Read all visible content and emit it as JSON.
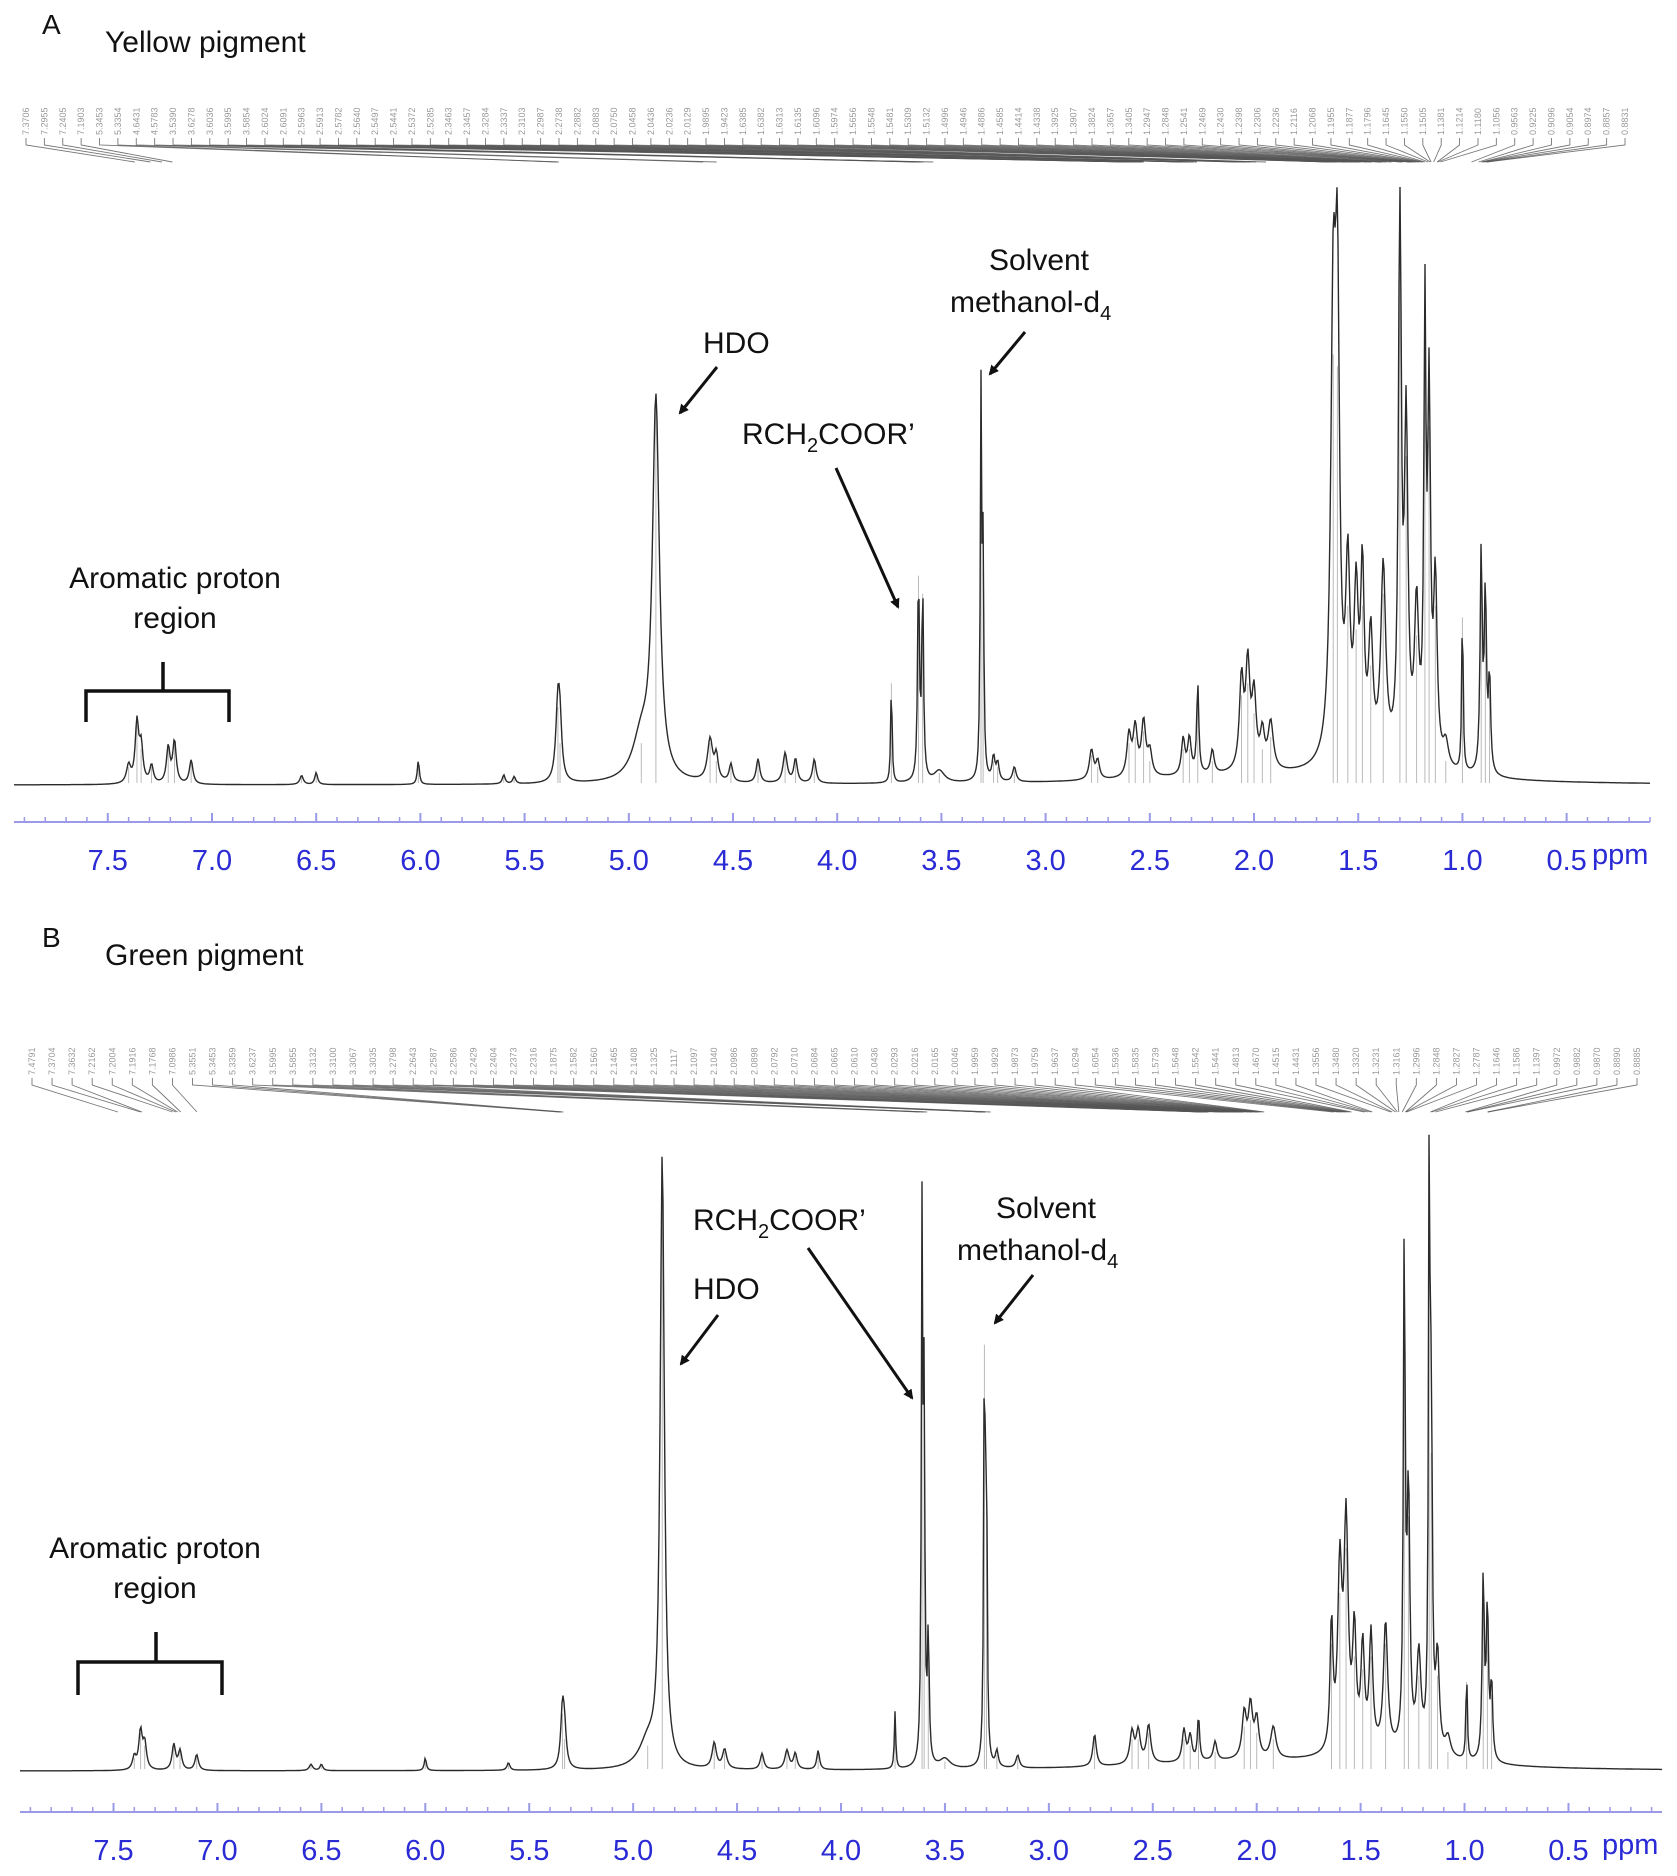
{
  "panels": [
    {
      "letter": "A",
      "title": "Yellow pigment",
      "xlabel": "ppm",
      "annotations": {
        "aromatic": [
          "Aromatic proton",
          "region"
        ],
        "hdo": "HDO",
        "ester": {
          "main": "RCH",
          "sub": "2",
          "rest": "COOR’"
        },
        "solvent": {
          "line1": "Solvent",
          "main": "methanol-d",
          "sub": "4"
        }
      },
      "peak_list": [
        "7.3706",
        "7.2955",
        "7.2405",
        "7.1903",
        "5.3453",
        "5.3354",
        "4.6431",
        "4.5783",
        "3.5390",
        "3.6278",
        "3.6036",
        "3.5995",
        "3.5854",
        "2.6024",
        "2.6091",
        "2.5963",
        "2.5913",
        "2.5782",
        "2.5640",
        "2.5497",
        "2.5441",
        "2.5372",
        "2.5285",
        "2.3463",
        "2.3457",
        "2.3284",
        "2.3337",
        "2.3103",
        "2.2987",
        "2.2738",
        "2.2882",
        "2.0883",
        "2.0750",
        "2.0458",
        "2.0436",
        "2.0236",
        "2.0129",
        "1.9895",
        "1.9423",
        "1.6385",
        "1.6382",
        "1.6313",
        "1.6135",
        "1.6096",
        "1.5974",
        "1.5656",
        "1.5548",
        "1.5481",
        "1.5309",
        "1.5132",
        "1.4996",
        "1.4946",
        "1.4886",
        "1.4585",
        "1.4414",
        "1.4338",
        "1.3925",
        "1.3907",
        "1.3824",
        "1.3657",
        "1.3405",
        "1.2947",
        "1.2848",
        "1.2541",
        "1.2469",
        "1.2430",
        "1.2398",
        "1.2306",
        "1.2236",
        "1.2116",
        "1.2068",
        "1.1955",
        "1.1877",
        "1.1796",
        "1.1645",
        "1.1550",
        "1.1505",
        "1.1381",
        "1.1214",
        "1.1180",
        "1.1056",
        "0.9563",
        "0.9225",
        "0.9096",
        "0.9054",
        "0.8974",
        "0.8857",
        "0.8831"
      ]
    },
    {
      "letter": "B",
      "title": "Green pigment",
      "xlabel": "ppm",
      "annotations": {
        "aromatic": [
          "Aromatic proton",
          "region"
        ],
        "hdo": "HDO",
        "ester": {
          "main": "RCH",
          "sub": "2",
          "rest": "COOR’"
        },
        "solvent": {
          "line1": "Solvent",
          "main": "methanol-d",
          "sub": "4"
        }
      },
      "peak_list": [
        "7.4791",
        "7.3704",
        "7.3632",
        "7.2162",
        "7.2004",
        "7.1916",
        "7.1768",
        "7.0986",
        "5.3551",
        "5.3453",
        "5.3359",
        "3.6237",
        "3.5995",
        "3.5855",
        "3.3132",
        "3.3100",
        "3.3067",
        "3.3035",
        "3.2798",
        "2.2643",
        "2.2587",
        "2.2586",
        "2.2429",
        "2.2404",
        "2.2373",
        "2.2316",
        "2.1875",
        "2.1582",
        "2.1560",
        "2.1465",
        "2.1408",
        "2.1325",
        "2.1117",
        "2.1097",
        "2.1040",
        "2.0986",
        "2.0898",
        "2.0792",
        "2.0710",
        "2.0684",
        "2.0665",
        "2.0610",
        "2.0436",
        "2.0293",
        "2.0216",
        "2.0165",
        "2.0046",
        "1.9959",
        "1.9929",
        "1.9873",
        "1.9759",
        "1.9637",
        "1.6294",
        "1.6054",
        "1.5936",
        "1.5835",
        "1.5739",
        "1.5648",
        "1.5542",
        "1.5441",
        "1.4813",
        "1.4670",
        "1.4515",
        "1.4431",
        "1.3556",
        "1.3480",
        "1.3320",
        "1.3231",
        "1.3161",
        "1.2996",
        "1.2848",
        "1.2827",
        "1.2787",
        "1.1646",
        "1.1586",
        "1.1397",
        "0.9972",
        "0.9882",
        "0.9870",
        "0.8890",
        "0.8885"
      ]
    }
  ],
  "chart_data": [
    {
      "type": "line",
      "title": "Yellow pigment",
      "xlabel": "ppm",
      "xlim": [
        7.95,
        0.1
      ],
      "x_reversed": true,
      "ylim": [
        0,
        1.02
      ],
      "grid": false,
      "legend": "none",
      "xticks": [
        "7.5",
        "7.0",
        "6.5",
        "6.0",
        "5.5",
        "5.0",
        "4.5",
        "4.0",
        "3.5",
        "3.0",
        "2.5",
        "2.0",
        "1.5",
        "1.0",
        "0.5"
      ],
      "peaks": [
        {
          "ppm": 7.4,
          "h": 0.03,
          "w": 0.012
        },
        {
          "ppm": 7.36,
          "h": 0.1,
          "w": 0.01
        },
        {
          "ppm": 7.34,
          "h": 0.06,
          "w": 0.01
        },
        {
          "ppm": 7.29,
          "h": 0.03,
          "w": 0.01
        },
        {
          "ppm": 7.21,
          "h": 0.06,
          "w": 0.01
        },
        {
          "ppm": 7.18,
          "h": 0.07,
          "w": 0.01
        },
        {
          "ppm": 7.1,
          "h": 0.04,
          "w": 0.01
        },
        {
          "ppm": 6.57,
          "h": 0.015,
          "w": 0.01
        },
        {
          "ppm": 6.5,
          "h": 0.02,
          "w": 0.008
        },
        {
          "ppm": 6.01,
          "h": 0.04,
          "w": 0.006
        },
        {
          "ppm": 5.6,
          "h": 0.015,
          "w": 0.008
        },
        {
          "ppm": 5.55,
          "h": 0.012,
          "w": 0.008
        },
        {
          "ppm": 5.34,
          "h": 0.13,
          "w": 0.012
        },
        {
          "ppm": 5.33,
          "h": 0.07,
          "w": 0.01
        },
        {
          "ppm": 4.94,
          "h": 0.07,
          "w": 0.05
        },
        {
          "ppm": 4.87,
          "h": 0.63,
          "w": 0.02
        },
        {
          "ppm": 4.61,
          "h": 0.07,
          "w": 0.015
        },
        {
          "ppm": 4.58,
          "h": 0.04,
          "w": 0.01
        },
        {
          "ppm": 4.51,
          "h": 0.03,
          "w": 0.01
        },
        {
          "ppm": 4.38,
          "h": 0.04,
          "w": 0.01
        },
        {
          "ppm": 4.25,
          "h": 0.05,
          "w": 0.012
        },
        {
          "ppm": 4.2,
          "h": 0.04,
          "w": 0.01
        },
        {
          "ppm": 4.11,
          "h": 0.04,
          "w": 0.01
        },
        {
          "ppm": 3.74,
          "h": 0.17,
          "w": 0.004
        },
        {
          "ppm": 3.61,
          "h": 0.35,
          "w": 0.005
        },
        {
          "ppm": 3.59,
          "h": 0.32,
          "w": 0.005
        },
        {
          "ppm": 3.51,
          "h": 0.02,
          "w": 0.03
        },
        {
          "ppm": 3.31,
          "h": 0.64,
          "w": 0.004
        },
        {
          "ppm": 3.3,
          "h": 0.36,
          "w": 0.004
        },
        {
          "ppm": 3.25,
          "h": 0.04,
          "w": 0.008
        },
        {
          "ppm": 3.23,
          "h": 0.03,
          "w": 0.008
        },
        {
          "ppm": 3.15,
          "h": 0.025,
          "w": 0.01
        },
        {
          "ppm": 2.78,
          "h": 0.05,
          "w": 0.012
        },
        {
          "ppm": 2.75,
          "h": 0.03,
          "w": 0.01
        },
        {
          "ppm": 2.6,
          "h": 0.07,
          "w": 0.012
        },
        {
          "ppm": 2.57,
          "h": 0.08,
          "w": 0.012
        },
        {
          "ppm": 2.53,
          "h": 0.09,
          "w": 0.012
        },
        {
          "ppm": 2.5,
          "h": 0.04,
          "w": 0.012
        },
        {
          "ppm": 2.34,
          "h": 0.06,
          "w": 0.01
        },
        {
          "ppm": 2.31,
          "h": 0.06,
          "w": 0.01
        },
        {
          "ppm": 2.27,
          "h": 0.15,
          "w": 0.006
        },
        {
          "ppm": 2.2,
          "h": 0.04,
          "w": 0.01
        },
        {
          "ppm": 2.06,
          "h": 0.15,
          "w": 0.012
        },
        {
          "ppm": 2.03,
          "h": 0.17,
          "w": 0.012
        },
        {
          "ppm": 2.0,
          "h": 0.12,
          "w": 0.012
        },
        {
          "ppm": 1.96,
          "h": 0.06,
          "w": 0.012
        },
        {
          "ppm": 1.92,
          "h": 0.08,
          "w": 0.015
        },
        {
          "ppm": 1.62,
          "h": 0.72,
          "w": 0.014
        },
        {
          "ppm": 1.6,
          "h": 0.7,
          "w": 0.012
        },
        {
          "ppm": 1.55,
          "h": 0.3,
          "w": 0.012
        },
        {
          "ppm": 1.51,
          "h": 0.26,
          "w": 0.012
        },
        {
          "ppm": 1.48,
          "h": 0.3,
          "w": 0.01
        },
        {
          "ppm": 1.44,
          "h": 0.2,
          "w": 0.012
        },
        {
          "ppm": 1.38,
          "h": 0.32,
          "w": 0.014
        },
        {
          "ppm": 1.3,
          "h": 0.96,
          "w": 0.008
        },
        {
          "ppm": 1.27,
          "h": 0.55,
          "w": 0.01
        },
        {
          "ppm": 1.22,
          "h": 0.25,
          "w": 0.012
        },
        {
          "ppm": 1.18,
          "h": 0.72,
          "w": 0.006
        },
        {
          "ppm": 1.16,
          "h": 0.6,
          "w": 0.008
        },
        {
          "ppm": 1.13,
          "h": 0.3,
          "w": 0.01
        },
        {
          "ppm": 1.08,
          "h": 0.04,
          "w": 0.015
        },
        {
          "ppm": 1.0,
          "h": 0.28,
          "w": 0.004
        },
        {
          "ppm": 0.91,
          "h": 0.37,
          "w": 0.006
        },
        {
          "ppm": 0.89,
          "h": 0.3,
          "w": 0.006
        },
        {
          "ppm": 0.87,
          "h": 0.16,
          "w": 0.006
        }
      ]
    },
    {
      "type": "line",
      "title": "Green pigment",
      "xlabel": "ppm",
      "xlim": [
        7.95,
        0.05
      ],
      "x_reversed": true,
      "ylim": [
        0,
        1.02
      ],
      "grid": false,
      "legend": "none",
      "xticks": [
        "7.5",
        "7.0",
        "6.5",
        "6.0",
        "5.5",
        "5.0",
        "4.5",
        "4.0",
        "3.5",
        "3.0",
        "2.5",
        "2.0",
        "1.5",
        "1.0",
        "0.5"
      ],
      "peaks": [
        {
          "ppm": 7.4,
          "h": 0.02,
          "w": 0.01
        },
        {
          "ppm": 7.37,
          "h": 0.06,
          "w": 0.01
        },
        {
          "ppm": 7.35,
          "h": 0.04,
          "w": 0.01
        },
        {
          "ppm": 7.21,
          "h": 0.04,
          "w": 0.01
        },
        {
          "ppm": 7.18,
          "h": 0.03,
          "w": 0.01
        },
        {
          "ppm": 7.1,
          "h": 0.025,
          "w": 0.01
        },
        {
          "ppm": 6.55,
          "h": 0.01,
          "w": 0.01
        },
        {
          "ppm": 6.5,
          "h": 0.01,
          "w": 0.008
        },
        {
          "ppm": 6.0,
          "h": 0.02,
          "w": 0.006
        },
        {
          "ppm": 5.6,
          "h": 0.012,
          "w": 0.008
        },
        {
          "ppm": 5.34,
          "h": 0.09,
          "w": 0.01
        },
        {
          "ppm": 5.33,
          "h": 0.05,
          "w": 0.01
        },
        {
          "ppm": 4.93,
          "h": 0.04,
          "w": 0.05
        },
        {
          "ppm": 4.86,
          "h": 0.96,
          "w": 0.012
        },
        {
          "ppm": 4.61,
          "h": 0.04,
          "w": 0.012
        },
        {
          "ppm": 4.56,
          "h": 0.03,
          "w": 0.012
        },
        {
          "ppm": 4.38,
          "h": 0.025,
          "w": 0.01
        },
        {
          "ppm": 4.26,
          "h": 0.03,
          "w": 0.012
        },
        {
          "ppm": 4.22,
          "h": 0.025,
          "w": 0.01
        },
        {
          "ppm": 4.11,
          "h": 0.03,
          "w": 0.008
        },
        {
          "ppm": 3.74,
          "h": 0.09,
          "w": 0.004
        },
        {
          "ppm": 3.61,
          "h": 0.85,
          "w": 0.004
        },
        {
          "ppm": 3.6,
          "h": 0.55,
          "w": 0.004
        },
        {
          "ppm": 3.58,
          "h": 0.2,
          "w": 0.005
        },
        {
          "ppm": 3.5,
          "h": 0.015,
          "w": 0.03
        },
        {
          "ppm": 3.31,
          "h": 0.67,
          "w": 0.004
        },
        {
          "ppm": 3.3,
          "h": 0.45,
          "w": 0.004
        },
        {
          "ppm": 3.25,
          "h": 0.025,
          "w": 0.008
        },
        {
          "ppm": 3.15,
          "h": 0.02,
          "w": 0.01
        },
        {
          "ppm": 2.78,
          "h": 0.05,
          "w": 0.01
        },
        {
          "ppm": 2.6,
          "h": 0.05,
          "w": 0.012
        },
        {
          "ppm": 2.57,
          "h": 0.05,
          "w": 0.012
        },
        {
          "ppm": 2.52,
          "h": 0.06,
          "w": 0.012
        },
        {
          "ppm": 2.35,
          "h": 0.05,
          "w": 0.01
        },
        {
          "ppm": 2.32,
          "h": 0.04,
          "w": 0.01
        },
        {
          "ppm": 2.28,
          "h": 0.07,
          "w": 0.006
        },
        {
          "ppm": 2.2,
          "h": 0.03,
          "w": 0.01
        },
        {
          "ppm": 2.06,
          "h": 0.07,
          "w": 0.012
        },
        {
          "ppm": 2.03,
          "h": 0.08,
          "w": 0.012
        },
        {
          "ppm": 2.0,
          "h": 0.06,
          "w": 0.012
        },
        {
          "ppm": 1.92,
          "h": 0.05,
          "w": 0.015
        },
        {
          "ppm": 1.64,
          "h": 0.2,
          "w": 0.008
        },
        {
          "ppm": 1.6,
          "h": 0.28,
          "w": 0.012
        },
        {
          "ppm": 1.57,
          "h": 0.35,
          "w": 0.012
        },
        {
          "ppm": 1.53,
          "h": 0.18,
          "w": 0.01
        },
        {
          "ppm": 1.49,
          "h": 0.16,
          "w": 0.01
        },
        {
          "ppm": 1.45,
          "h": 0.18,
          "w": 0.01
        },
        {
          "ppm": 1.38,
          "h": 0.2,
          "w": 0.012
        },
        {
          "ppm": 1.29,
          "h": 0.8,
          "w": 0.005
        },
        {
          "ppm": 1.27,
          "h": 0.4,
          "w": 0.008
        },
        {
          "ppm": 1.22,
          "h": 0.15,
          "w": 0.012
        },
        {
          "ppm": 1.17,
          "h": 0.95,
          "w": 0.004
        },
        {
          "ppm": 1.16,
          "h": 0.5,
          "w": 0.006
        },
        {
          "ppm": 1.13,
          "h": 0.15,
          "w": 0.01
        },
        {
          "ppm": 1.08,
          "h": 0.03,
          "w": 0.015
        },
        {
          "ppm": 0.99,
          "h": 0.14,
          "w": 0.004
        },
        {
          "ppm": 0.91,
          "h": 0.29,
          "w": 0.006
        },
        {
          "ppm": 0.89,
          "h": 0.24,
          "w": 0.006
        },
        {
          "ppm": 0.87,
          "h": 0.12,
          "w": 0.006
        }
      ]
    }
  ]
}
